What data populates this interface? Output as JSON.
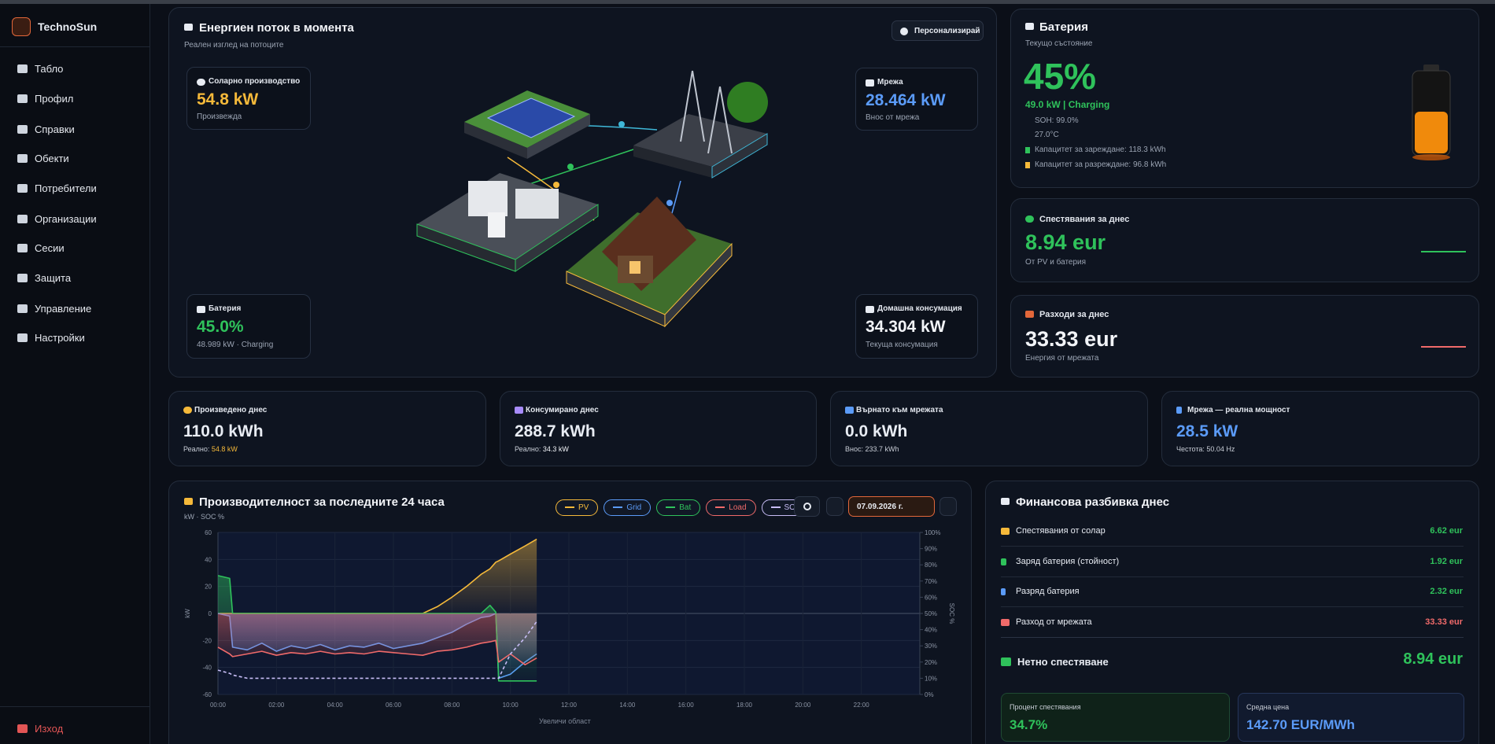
{
  "sidebar": {
    "brand": "TechnoSun",
    "menu": [
      "Табло",
      "Профил",
      "Справки",
      "Обекти",
      "Потребители",
      "Организации",
      "Сесии",
      "Защита",
      "Управление",
      "Настройки"
    ],
    "logout": "Изход"
  },
  "flow": {
    "title": "Енергиен поток в момента",
    "subtitle": "Реален изглед на потоците",
    "button": "Персонализирай",
    "solar": {
      "label": "Соларно производство",
      "value": "54.8 kW",
      "note": "Произвежда"
    },
    "grid": {
      "label": "Мрежа",
      "value": "28.464 kW",
      "note": "Внос от мрежа"
    },
    "battery": {
      "label": "Батерия",
      "value": "45.0%",
      "note": "48.989 kW · Charging"
    },
    "home": {
      "label": "Домашна консумация",
      "value": "34.304 kW",
      "note": "Текуща консумация"
    }
  },
  "battery": {
    "title": "Батерия",
    "subtitle": "Текущо състояние",
    "percent": "45%",
    "power": "49.0 kW | Charging",
    "soh": "SOH: 99.0%",
    "temperature": "27.0°C",
    "charge_capacity": "Капацитет за зареждане: 118.3 kWh",
    "discharge_capacity": "Капацитет за разреждане: 96.8 kWh"
  },
  "savings": {
    "label": "Спестявания за днес",
    "value": "8.94 eur",
    "note": "От PV и батерия"
  },
  "costs": {
    "label": "Разходи за днес",
    "value": "33.33 eur",
    "note": "Енергия от мрежата"
  },
  "stats": [
    {
      "label": "Произведено днес",
      "value": "110.0 kWh",
      "note": "Реално:",
      "note_value": "54.8 kW"
    },
    {
      "label": "Консумирано днес",
      "value": "288.7 kWh",
      "note": "Реално:",
      "note_value": "34.3 kW"
    },
    {
      "label": "Върнато към мрежата",
      "value": "0.0 kWh",
      "note": "Внос: 233.7 kWh"
    },
    {
      "label": "Мрежа — реална мощност",
      "value": "28.5 kW",
      "note": "Честота: 50.04 Hz"
    }
  ],
  "chart_controls": {
    "date": "07.09.2026 г.",
    "zoom_hint": "Увеличи област"
  },
  "chart_data": {
    "type": "line",
    "title": "Производителност за последните 24 часа",
    "subtitle": "kW · SOC %",
    "y_label": "kW",
    "y2_label": "SOC %",
    "x": [
      0,
      0.4,
      0.5,
      1,
      1.5,
      2,
      2.5,
      3,
      3.5,
      4,
      4.5,
      5,
      5.5,
      6,
      6.5,
      7,
      7.5,
      8,
      8.5,
      9,
      9.3,
      9.5,
      9.6,
      10,
      10.5,
      10.9
    ],
    "xlim": [
      0,
      24
    ],
    "xticks": [
      {
        "value": 0,
        "label": "00:00"
      },
      {
        "value": 2,
        "label": "02:00"
      },
      {
        "value": 4,
        "label": "04:00"
      },
      {
        "value": 6,
        "label": "06:00"
      },
      {
        "value": 8,
        "label": "08:00"
      },
      {
        "value": 10,
        "label": "10:00"
      },
      {
        "value": 12,
        "label": "12:00"
      },
      {
        "value": 14,
        "label": "14:00"
      },
      {
        "value": 16,
        "label": "16:00"
      },
      {
        "value": 18,
        "label": "18:00"
      },
      {
        "value": 20,
        "label": "20:00"
      },
      {
        "value": 22,
        "label": "22:00"
      }
    ],
    "ylim": [
      -60,
      60
    ],
    "yticks": [
      -60,
      -40,
      -20,
      0,
      20,
      40,
      60
    ],
    "y2lim": [
      0,
      100
    ],
    "y2ticks": [
      {
        "value": 0,
        "label": "0%"
      },
      {
        "value": 10,
        "label": "10%"
      },
      {
        "value": 20,
        "label": "20%"
      },
      {
        "value": 30,
        "label": "30%"
      },
      {
        "value": 40,
        "label": "40%"
      },
      {
        "value": 50,
        "label": "50%"
      },
      {
        "value": 60,
        "label": "60%"
      },
      {
        "value": 70,
        "label": "70%"
      },
      {
        "value": 80,
        "label": "80%"
      },
      {
        "value": 90,
        "label": "90%"
      },
      {
        "value": 100,
        "label": "100%"
      }
    ],
    "grid": true,
    "series": [
      {
        "name": "PV",
        "color": "#f5b93a",
        "values": [
          0,
          0,
          0,
          0,
          0,
          0,
          0,
          0,
          0,
          0,
          0,
          0,
          0,
          0,
          0,
          0,
          5,
          12,
          20,
          29,
          33,
          38,
          39,
          44,
          50,
          55
        ]
      },
      {
        "name": "Grid",
        "color": "#5b9bf8",
        "values": [
          0,
          -2,
          -25,
          -27,
          -22,
          -28,
          -24,
          -26,
          -23,
          -27,
          -24,
          -25,
          -22,
          -26,
          -24,
          -22,
          -18,
          -14,
          -8,
          -3,
          -2,
          0,
          -48,
          -45,
          -36,
          -30
        ]
      },
      {
        "name": "Bat",
        "color": "#2fc25b",
        "values": [
          28,
          26,
          0,
          0,
          0,
          0,
          0,
          0,
          0,
          0,
          0,
          0,
          0,
          0,
          0,
          0,
          0,
          0,
          0,
          0,
          6,
          1,
          -50,
          -50,
          -50,
          -50
        ]
      },
      {
        "name": "Load",
        "color": "#f06a6a",
        "values": [
          -25,
          -30,
          -32,
          -30,
          -28,
          -31,
          -29,
          -30,
          -28,
          -30,
          -29,
          -30,
          -28,
          -29,
          -30,
          -31,
          -28,
          -27,
          -25,
          -22,
          -21,
          -20,
          -36,
          -30,
          -38,
          -33
        ]
      },
      {
        "name": "SOC",
        "color": "#c7bdf5",
        "axis": "y2",
        "dashed": true,
        "values": [
          15,
          13,
          12,
          10,
          10,
          10,
          10,
          10,
          10,
          10,
          10,
          10,
          10,
          10,
          10,
          10,
          10,
          10,
          10,
          10,
          10,
          10,
          10,
          25,
          35,
          45
        ]
      }
    ]
  },
  "finance": {
    "title": "Финансова разбивка днес",
    "rows": [
      {
        "label": "Спестявания от солар",
        "value": "6.62 eur"
      },
      {
        "label": "Заряд батерия (стойност)",
        "value": "1.92 eur"
      },
      {
        "label": "Разряд батерия",
        "value": "2.32 eur"
      },
      {
        "label": "Разход от мрежата",
        "value": "33.33 eur"
      }
    ],
    "net": {
      "label": "Нетно спестяване",
      "value": "8.94 eur"
    },
    "tiles": [
      {
        "label": "Процент спестявания",
        "value": "34.7%"
      },
      {
        "label": "Средна цена",
        "value": "142.70 EUR/MWh"
      }
    ]
  }
}
